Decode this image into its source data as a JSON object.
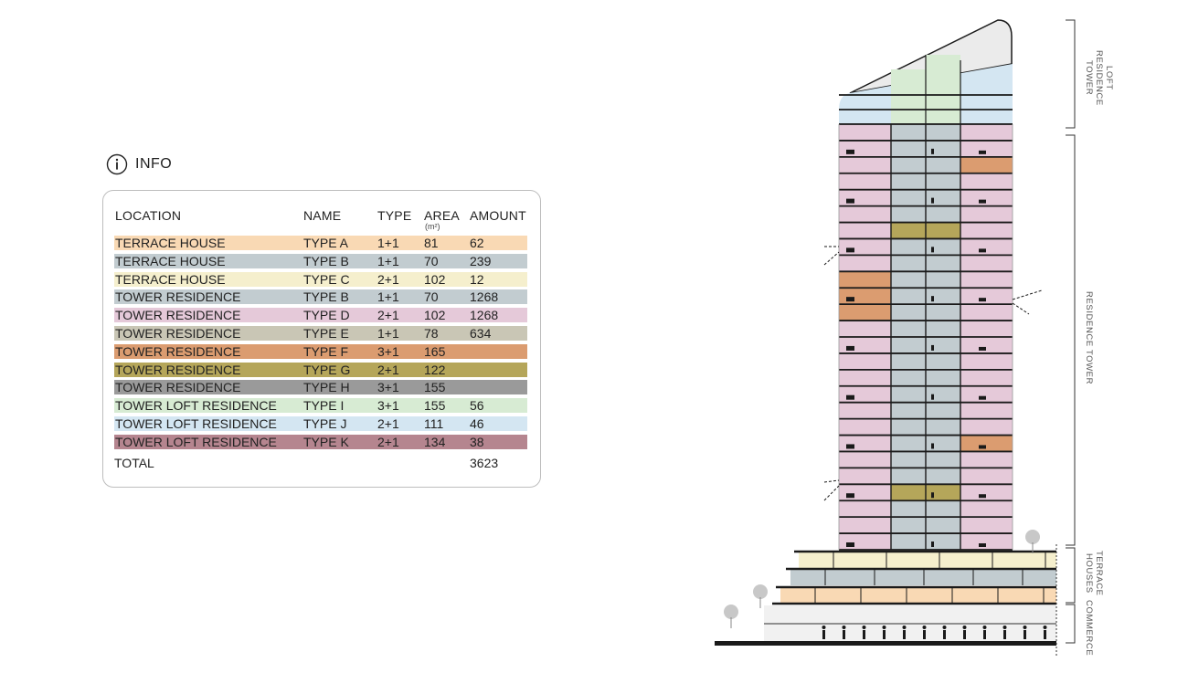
{
  "info": {
    "title": "INFO",
    "icon": "info-circle-icon"
  },
  "table": {
    "headers": {
      "location": "LOCATION",
      "name": "NAME",
      "type": "TYPE",
      "area": "AREA",
      "area_unit": "(m²)",
      "amount": "AMOUNT"
    },
    "rows": [
      {
        "location": "TERRACE HOUSE",
        "name": "TYPE A",
        "type": "1+1",
        "area": "81",
        "amount": "62",
        "color": "#f9d9b4"
      },
      {
        "location": "TERRACE HOUSE",
        "name": "TYPE B",
        "type": "1+1",
        "area": "70",
        "amount": "239",
        "color": "#c2ccd0"
      },
      {
        "location": "TERRACE HOUSE",
        "name": "TYPE C",
        "type": "2+1",
        "area": "102",
        "amount": "12",
        "color": "#f5efcd"
      },
      {
        "location": "TOWER RESIDENCE",
        "name": "TYPE B",
        "type": "1+1",
        "area": "70",
        "amount": "1268",
        "color": "#c2ccd0"
      },
      {
        "location": "TOWER RESIDENCE",
        "name": "TYPE D",
        "type": "2+1",
        "area": "102",
        "amount": "1268",
        "color": "#e5c9d9"
      },
      {
        "location": "TOWER RESIDENCE",
        "name": "TYPE E",
        "type": "1+1",
        "area": "78",
        "amount": "634",
        "color": "#c9c6b5"
      },
      {
        "location": "TOWER RESIDENCE",
        "name": "TYPE F",
        "type": "3+1",
        "area": "165",
        "amount": "",
        "color": "#db9c70"
      },
      {
        "location": "TOWER RESIDENCE",
        "name": "TYPE G",
        "type": "2+1",
        "area": "122",
        "amount": "",
        "color": "#b5a65a"
      },
      {
        "location": "TOWER RESIDENCE",
        "name": "TYPE H",
        "type": "3+1",
        "area": "155",
        "amount": "",
        "color": "#9a9a9a"
      },
      {
        "location": "TOWER LOFT RESIDENCE",
        "name": "TYPE I",
        "type": "3+1",
        "area": "155",
        "amount": "56",
        "color": "#d7ebd3"
      },
      {
        "location": "TOWER LOFT RESIDENCE",
        "name": "TYPE J",
        "type": "2+1",
        "area": "111",
        "amount": "46",
        "color": "#d4e6f2"
      },
      {
        "location": "TOWER LOFT RESIDENCE",
        "name": "TYPE K",
        "type": "2+1",
        "area": "134",
        "amount": "38",
        "color": "#b5858f"
      }
    ],
    "total": {
      "label": "TOTAL",
      "amount": "3623"
    }
  },
  "section_labels": {
    "loft": "LOFT RESIDENCE TOWER",
    "residence": "RESIDENCE TOWER",
    "terrace": "TERRACE HOUSES",
    "commerce": "COMMERCE"
  },
  "colors": {
    "tower_side": "#e5c9d9",
    "tower_core": "#c2ccd0",
    "type_f": "#db9c70",
    "type_g": "#b5a65a",
    "loft_blue": "#d4e6f2",
    "loft_green": "#d7ebd3",
    "terrace_a": "#f9d9b4",
    "terrace_b": "#c2ccd0",
    "terrace_c": "#f5efcd",
    "roof": "#ebebeb",
    "structure": "#1a1a1a"
  }
}
